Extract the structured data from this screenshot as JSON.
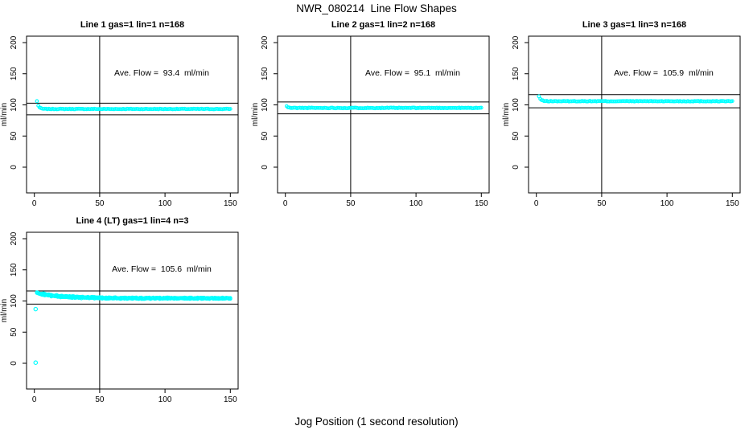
{
  "page": {
    "main_title": "NWR_080214  Line Flow Shapes",
    "x_axis_label": "Jog Position (1 second resolution)",
    "background_color": "#ffffff",
    "accent_color": "#00ffff"
  },
  "chart_data": [
    {
      "type": "scatter",
      "title": "Line 1 gas=1 lin=1 n=168",
      "n_points": 168,
      "ylabel": "ml/min",
      "ave_flow": 93.4,
      "annotation_label": "Ave. Flow =  93.4  ml/min",
      "annotation_pos": {
        "x": 97.5,
        "y": 150
      },
      "ref_upper": 102.7,
      "ref_lower": 84.1,
      "vline_x": 50,
      "xlim": [
        0,
        150
      ],
      "ylim": [
        0,
        200
      ],
      "xticks": [
        0,
        50,
        100,
        150
      ],
      "yticks": [
        0,
        50,
        100,
        150,
        200
      ],
      "marker_color": "#00ffff",
      "grid": false,
      "series": [
        {
          "start_y": 106,
          "settle_y": 93.4,
          "tau": 1.2,
          "noise": 0.5,
          "x_start": 2,
          "x_end": 150,
          "seed": 7
        }
      ],
      "outliers": []
    },
    {
      "type": "scatter",
      "title": "Line 2 gas=1 lin=2 n=168",
      "n_points": 168,
      "ylabel": "ml/min",
      "ave_flow": 95.1,
      "annotation_label": "Ave. Flow =  95.1  ml/min",
      "annotation_pos": {
        "x": 97.5,
        "y": 150
      },
      "ref_upper": 104.6,
      "ref_lower": 85.6,
      "vline_x": 50,
      "xlim": [
        0,
        150
      ],
      "ylim": [
        0,
        200
      ],
      "xticks": [
        0,
        50,
        100,
        150
      ],
      "yticks": [
        0,
        50,
        100,
        150,
        200
      ],
      "marker_color": "#00ffff",
      "grid": false,
      "series": [
        {
          "start_y": 97.8,
          "settle_y": 95.1,
          "tau": 1.0,
          "noise": 0.55,
          "x_start": 1,
          "x_end": 150,
          "seed": 11
        }
      ],
      "outliers": []
    },
    {
      "type": "scatter",
      "title": "Line 3 gas=1 lin=3 n=168",
      "n_points": 168,
      "ylabel": "ml/min",
      "ave_flow": 105.9,
      "annotation_label": "Ave. Flow =  105.9  ml/min",
      "annotation_pos": {
        "x": 97.5,
        "y": 150
      },
      "ref_upper": 116.5,
      "ref_lower": 95.3,
      "vline_x": 50,
      "xlim": [
        0,
        150
      ],
      "ylim": [
        0,
        200
      ],
      "xticks": [
        0,
        50,
        100,
        150
      ],
      "yticks": [
        0,
        50,
        100,
        150,
        200
      ],
      "marker_color": "#00ffff",
      "grid": false,
      "series": [
        {
          "start_y": 113.5,
          "settle_y": 105.9,
          "tau": 1.4,
          "noise": 0.5,
          "x_start": 2,
          "x_end": 150,
          "seed": 13
        }
      ],
      "outliers": []
    },
    {
      "type": "scatter",
      "title": "Line 4 (LT) gas=1 lin=4 n=3",
      "n_points": 3,
      "ylabel": "ml/min",
      "ave_flow": 105.6,
      "annotation_label": "Ave. Flow =  105.6  ml/min",
      "annotation_pos": {
        "x": 97.5,
        "y": 150
      },
      "ref_upper": 116.2,
      "ref_lower": 95.0,
      "vline_x": 50,
      "xlim": [
        0,
        150
      ],
      "ylim": [
        0,
        200
      ],
      "xticks": [
        0,
        50,
        100,
        150
      ],
      "yticks": [
        0,
        50,
        100,
        150,
        200
      ],
      "marker_color": "#00ffff",
      "grid": false,
      "series": [
        {
          "start_y": 112.8,
          "settle_y": 104.3,
          "tau": 18,
          "noise": 0.9,
          "x_start": 2,
          "x_end": 150,
          "seed": 17
        },
        {
          "start_y": 113.5,
          "settle_y": 104.7,
          "tau": 20,
          "noise": 0.9,
          "x_start": 2,
          "x_end": 150,
          "seed": 23
        },
        {
          "start_y": 112.2,
          "settle_y": 104.0,
          "tau": 16,
          "noise": 0.9,
          "x_start": 2,
          "x_end": 150,
          "seed": 29
        }
      ],
      "outliers": [
        [
          1,
          1
        ],
        [
          1,
          87
        ]
      ]
    }
  ]
}
